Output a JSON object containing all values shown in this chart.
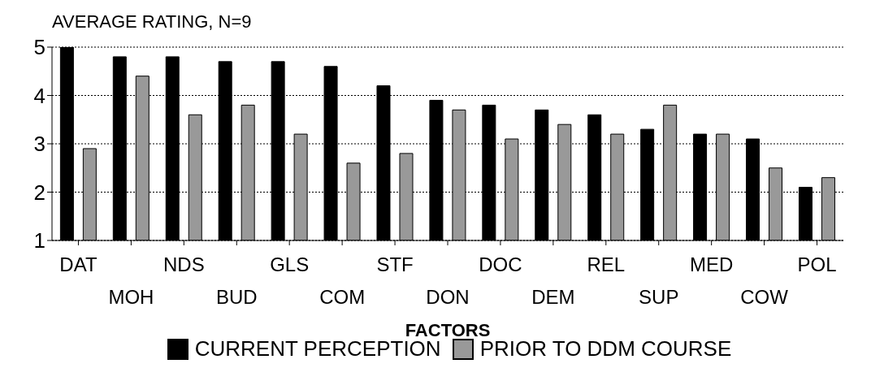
{
  "chart_data": {
    "type": "bar",
    "ylabel": "AVERAGE RATING, N=9",
    "xlabel": "FACTORS",
    "categories": [
      "DAT",
      "MOH",
      "NDS",
      "BUD",
      "GLS",
      "COM",
      "STF",
      "DON",
      "DOC",
      "DEM",
      "REL",
      "SUP",
      "MED",
      "COW",
      "POL"
    ],
    "series": [
      {
        "name": "CURRENT PERCEPTION",
        "color": "#000000",
        "values": [
          5.0,
          4.8,
          4.8,
          4.7,
          4.7,
          4.6,
          4.2,
          3.9,
          3.8,
          3.7,
          3.6,
          3.3,
          3.2,
          3.1,
          2.1
        ]
      },
      {
        "name": "PRIOR TO DDM COURSE",
        "color": "#999999",
        "values": [
          2.9,
          4.4,
          3.6,
          3.8,
          3.2,
          2.6,
          2.8,
          3.7,
          3.1,
          3.4,
          3.2,
          3.8,
          3.2,
          2.5,
          2.3
        ]
      }
    ],
    "ylim": [
      1,
      5
    ],
    "yticks": [
      1,
      2,
      3,
      4,
      5
    ],
    "grid": "y",
    "legend": "bottom"
  }
}
